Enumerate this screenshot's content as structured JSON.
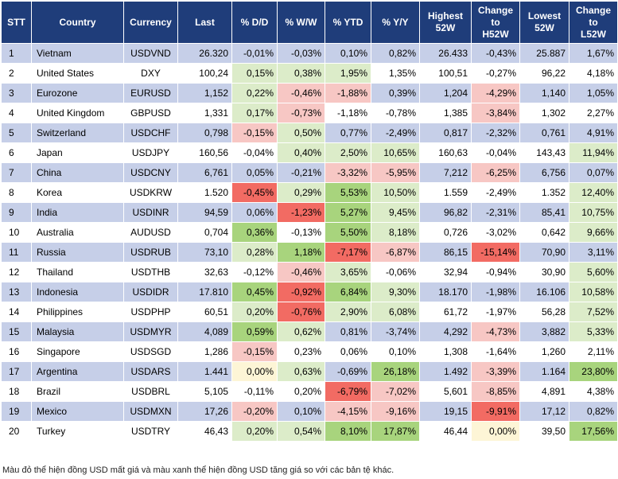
{
  "table": {
    "headers": [
      "STT",
      "Country",
      "Currency",
      "Last",
      "% D/D",
      "% W/W",
      "% YTD",
      "% Y/Y",
      "Highest\n52W",
      "Change\nto\nH52W",
      "Lowest\n52W",
      "Change\nto\nL52W"
    ],
    "rows": [
      [
        "1",
        "Vietnam",
        "USDVND",
        "26.320",
        "-0,01%",
        "-0,03%",
        "0,10%",
        "0,82%",
        "26.433",
        "-0,43%",
        "25.887",
        "1,67%"
      ],
      [
        "2",
        "United States",
        "DXY",
        "100,24",
        "0,15%",
        "0,38%",
        "1,95%",
        "1,35%",
        "100,51",
        "-0,27%",
        "96,22",
        "4,18%"
      ],
      [
        "3",
        "Eurozone",
        "EURUSD",
        "1,152",
        "0,22%",
        "-0,46%",
        "-1,88%",
        "0,39%",
        "1,204",
        "-4,29%",
        "1,140",
        "1,05%"
      ],
      [
        "4",
        "United Kingdom",
        "GBPUSD",
        "1,331",
        "0,17%",
        "-0,73%",
        "-1,18%",
        "-0,78%",
        "1,385",
        "-3,84%",
        "1,302",
        "2,27%"
      ],
      [
        "5",
        "Switzerland",
        "USDCHF",
        "0,798",
        "-0,15%",
        "0,50%",
        "0,77%",
        "-2,49%",
        "0,817",
        "-2,32%",
        "0,761",
        "4,91%"
      ],
      [
        "6",
        "Japan",
        "USDJPY",
        "160,56",
        "-0,04%",
        "0,40%",
        "2,50%",
        "10,65%",
        "160,63",
        "-0,04%",
        "143,43",
        "11,94%"
      ],
      [
        "7",
        "China",
        "USDCNY",
        "6,761",
        "0,05%",
        "-0,21%",
        "-3,32%",
        "-5,95%",
        "7,212",
        "-6,25%",
        "6,756",
        "0,07%"
      ],
      [
        "8",
        "Korea",
        "USDKRW",
        "1.520",
        "-0,45%",
        "0,29%",
        "5,53%",
        "10,50%",
        "1.559",
        "-2,49%",
        "1.352",
        "12,40%"
      ],
      [
        "9",
        "India",
        "USDINR",
        "94,59",
        "0,06%",
        "-1,23%",
        "5,27%",
        "9,45%",
        "96,82",
        "-2,31%",
        "85,41",
        "10,75%"
      ],
      [
        "10",
        "Australia",
        "AUDUSD",
        "0,704",
        "0,36%",
        "-0,13%",
        "5,50%",
        "8,18%",
        "0,726",
        "-3,02%",
        "0,642",
        "9,66%"
      ],
      [
        "11",
        "Russia",
        "USDRUB",
        "73,10",
        "0,28%",
        "1,18%",
        "-7,17%",
        "-6,87%",
        "86,15",
        "-15,14%",
        "70,90",
        "3,11%"
      ],
      [
        "12",
        "Thailand",
        "USDTHB",
        "32,63",
        "-0,12%",
        "-0,46%",
        "3,65%",
        "-0,06%",
        "32,94",
        "-0,94%",
        "30,90",
        "5,60%"
      ],
      [
        "13",
        "Indonesia",
        "USDIDR",
        "17.810",
        "0,45%",
        "-0,92%",
        "6,84%",
        "9,30%",
        "18.170",
        "-1,98%",
        "16.106",
        "10,58%"
      ],
      [
        "14",
        "Philippines",
        "USDPHP",
        "60,51",
        "0,20%",
        "-0,76%",
        "2,90%",
        "6,08%",
        "61,72",
        "-1,97%",
        "56,28",
        "7,52%"
      ],
      [
        "15",
        "Malaysia",
        "USDMYR",
        "4,089",
        "0,59%",
        "0,62%",
        "0,81%",
        "-3,74%",
        "4,292",
        "-4,73%",
        "3,882",
        "5,33%"
      ],
      [
        "16",
        "Singapore",
        "USDSGD",
        "1,286",
        "-0,15%",
        "0,23%",
        "0,06%",
        "0,10%",
        "1,308",
        "-1,64%",
        "1,260",
        "2,11%"
      ],
      [
        "17",
        "Argentina",
        "USDARS",
        "1.441",
        "0,00%",
        "0,63%",
        "-0,69%",
        "26,18%",
        "1.492",
        "-3,39%",
        "1.164",
        "23,80%"
      ],
      [
        "18",
        "Brazil",
        "USDBRL",
        "5,105",
        "-0,11%",
        "0,20%",
        "-6,79%",
        "-7,02%",
        "5,601",
        "-8,85%",
        "4,891",
        "4,38%"
      ],
      [
        "19",
        "Mexico",
        "USDMXN",
        "17,26",
        "-0,20%",
        "0,10%",
        "-4,15%",
        "-9,16%",
        "19,15",
        "-9,91%",
        "17,12",
        "0,82%"
      ],
      [
        "20",
        "Turkey",
        "USDTRY",
        "46,43",
        "0,20%",
        "0,54%",
        "8,10%",
        "17,87%",
        "46,44",
        "0,00%",
        "39,50",
        "17,56%"
      ]
    ],
    "row_colors": {
      "odd": "#c6cfe8",
      "even": "#ffffff"
    },
    "scale_colors": {
      "red_strong": "#f26b63",
      "red_light": "#f7c7c4",
      "neutral": "#fdf5d6",
      "green_light": "#dcecc9",
      "green_strong": "#a8d47d"
    }
  },
  "footnote": "Màu đỏ thể hiện đồng USD mất giá và màu xanh thể hiện đồng USD tăng giá so với các bản tệ khác."
}
